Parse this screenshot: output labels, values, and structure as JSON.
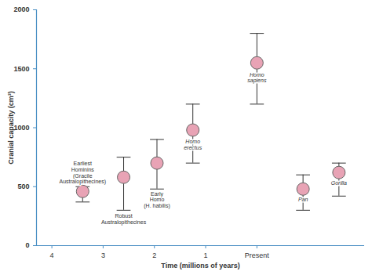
{
  "chart_data": {
    "type": "scatter",
    "x_label": "Time (millions of years)",
    "y_label": "Cranial capacity (cm³)",
    "labels": [
      "Earliest\nHominins\n(Gracile\nAustralopithecines)",
      "Robust\nAustralopithecines",
      "Early\nHomo\n(H. habilis)",
      "Homo\nerectus",
      "Homo\nsapiens",
      "Pan",
      "Gorilla"
    ],
    "x": [
      3.4,
      2.6,
      1.95,
      1.25,
      0,
      -0.9,
      -1.6
    ],
    "values": [
      460,
      580,
      700,
      980,
      1550,
      480,
      620
    ],
    "low": [
      370,
      300,
      480,
      700,
      1200,
      300,
      420
    ],
    "high": [
      500,
      750,
      900,
      1200,
      1800,
      600,
      700
    ],
    "xlim": [
      4.3,
      -2.1
    ],
    "xticks": [
      4,
      3,
      2,
      1,
      {
        "value": 0,
        "label": "Present"
      }
    ],
    "ylim": [
      0,
      2000
    ],
    "yticks": [
      0,
      500,
      1000,
      1500,
      2000
    ],
    "color": "#e8a3b5",
    "marker": "circle",
    "grid": false
  }
}
